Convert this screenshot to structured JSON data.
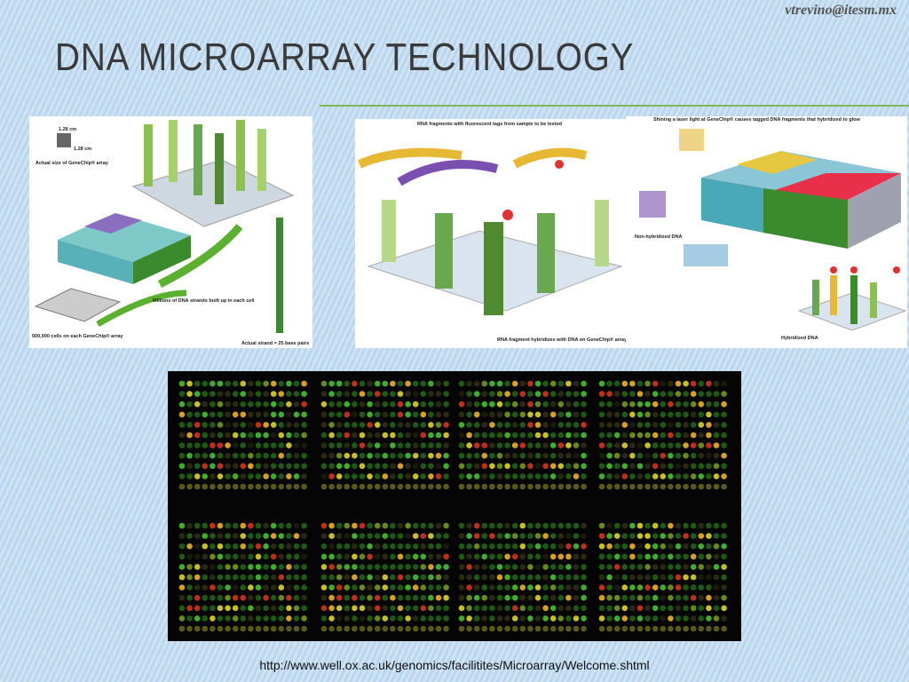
{
  "header": {
    "email": "vtrevino@itesm.mx",
    "title": "DNA MICROARRAY TECHNOLOGY"
  },
  "panels": [
    {
      "labels": [
        "1.28 cm",
        "1.28 cm",
        "Actual size of GeneChip® array",
        "Millions of DNA strands built up in each cell",
        "500,000 cells on each GeneChip® array",
        "Actual strand = 25 base pairs"
      ]
    },
    {
      "labels": [
        "RNA fragments with fluorescent tags from sample to be tested",
        "RNA fragment hybridizes with DNA on GeneChip® array"
      ]
    },
    {
      "labels": [
        "Shining a laser light at GeneChip® causes tagged DNA fragments that hybridized to glow",
        "Non-hybridized DNA",
        "Hybridized DNA"
      ]
    }
  ],
  "caption": "http://www.well.ox.ac.uk/genomics/facilitites/Microarray/Welcome.shtml"
}
